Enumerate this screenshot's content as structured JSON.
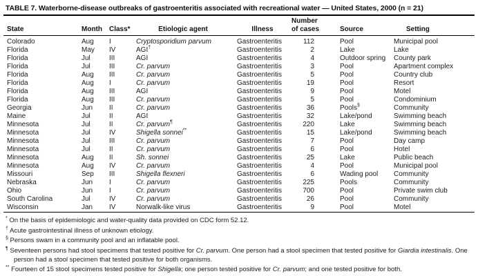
{
  "title": "TABLE 7. Waterborne-disease outbreaks of gastroenteritis associated with recreational water — United States, 2000 (n = 21)",
  "table": {
    "columns": {
      "state": "State",
      "month": "Month",
      "class": "Class*",
      "agent": "Etiologic agent",
      "illness": "Illness",
      "cases_line1": "Number",
      "cases_line2": "of cases",
      "source": "Source",
      "setting": "Setting"
    },
    "rows": [
      {
        "state": "Colorado",
        "month": "Aug",
        "class": "I",
        "agent": "Cryptosporidium parvum",
        "agent_italic": true,
        "agent_sup": "",
        "illness": "Gastroenteritis",
        "cases": "112",
        "source": "Pool",
        "source_sup": "",
        "setting": "Municipal pool"
      },
      {
        "state": "Florida",
        "month": "May",
        "class": "IV",
        "agent": "AGI",
        "agent_italic": false,
        "agent_sup": "†",
        "illness": "Gastroenteritis",
        "cases": "2",
        "source": "Lake",
        "source_sup": "",
        "setting": "Lake"
      },
      {
        "state": "Florida",
        "month": "Jul",
        "class": "III",
        "agent": "AGI",
        "agent_italic": false,
        "agent_sup": "",
        "illness": "Gastroenteritis",
        "cases": "4",
        "source": "Outdoor spring",
        "source_sup": "",
        "setting": "County park"
      },
      {
        "state": "Florida",
        "month": "Jul",
        "class": "III",
        "agent": "Cr. parvum",
        "agent_italic": true,
        "agent_sup": "",
        "illness": "Gastroenteritis",
        "cases": "3",
        "source": "Pool",
        "source_sup": "",
        "setting": "Apartment complex"
      },
      {
        "state": "Florida",
        "month": "Aug",
        "class": "III",
        "agent": "Cr. parvum",
        "agent_italic": true,
        "agent_sup": "",
        "illness": "Gastroenteritis",
        "cases": "5",
        "source": "Pool",
        "source_sup": "",
        "setting": "Country club"
      },
      {
        "state": "Florida",
        "month": "Aug",
        "class": "I",
        "agent": "Cr. parvum",
        "agent_italic": true,
        "agent_sup": "",
        "illness": "Gastroenteritis",
        "cases": "19",
        "source": "Pool",
        "source_sup": "",
        "setting": "Resort"
      },
      {
        "state": "Florida",
        "month": "Aug",
        "class": "III",
        "agent": "AGI",
        "agent_italic": false,
        "agent_sup": "",
        "illness": "Gastroenteritis",
        "cases": "9",
        "source": "Pool",
        "source_sup": "",
        "setting": "Motel"
      },
      {
        "state": "Florida",
        "month": "Aug",
        "class": "III",
        "agent": "Cr. parvum",
        "agent_italic": true,
        "agent_sup": "",
        "illness": "Gastroenteritis",
        "cases": "5",
        "source": "Pool",
        "source_sup": "",
        "setting": "Condominium"
      },
      {
        "state": "Georgia",
        "month": "Jun",
        "class": "II",
        "agent": "Cr. parvum",
        "agent_italic": true,
        "agent_sup": "",
        "illness": "Gastroenteritis",
        "cases": "36",
        "source": "Pools",
        "source_sup": "§",
        "setting": "Community"
      },
      {
        "state": "Maine",
        "month": "Jul",
        "class": "II",
        "agent": "AGI",
        "agent_italic": false,
        "agent_sup": "",
        "illness": "Gastroenteritis",
        "cases": "32",
        "source": "Lake/pond",
        "source_sup": "",
        "setting": "Swimming beach"
      },
      {
        "state": "Minnesota",
        "month": "Jul",
        "class": "II",
        "agent": "Cr. parvum",
        "agent_italic": true,
        "agent_sup": "¶",
        "illness": "Gastroenteritis",
        "cases": "220",
        "source": "Lake",
        "source_sup": "",
        "setting": "Swimming beach"
      },
      {
        "state": "Minnesota",
        "month": "Jul",
        "class": "IV",
        "agent": "Shigella sonnei",
        "agent_italic": true,
        "agent_sup": "**",
        "illness": "Gastroenteritis",
        "cases": "15",
        "source": "Lake/pond",
        "source_sup": "",
        "setting": "Swimming beach"
      },
      {
        "state": "Minnesota",
        "month": "Jul",
        "class": "III",
        "agent": "Cr. parvum",
        "agent_italic": true,
        "agent_sup": "",
        "illness": "Gastroenteritis",
        "cases": "7",
        "source": "Pool",
        "source_sup": "",
        "setting": "Day camp"
      },
      {
        "state": "Minnesota",
        "month": "Jul",
        "class": "II",
        "agent": "Cr. parvum",
        "agent_italic": true,
        "agent_sup": "",
        "illness": "Gastroenteritis",
        "cases": "6",
        "source": "Pool",
        "source_sup": "",
        "setting": "Hotel"
      },
      {
        "state": "Minnesota",
        "month": "Aug",
        "class": "II",
        "agent": "Sh. sonnei",
        "agent_italic": true,
        "agent_sup": "",
        "illness": "Gastroenteritis",
        "cases": "25",
        "source": "Lake",
        "source_sup": "",
        "setting": "Public beach"
      },
      {
        "state": "Minnesota",
        "month": "Aug",
        "class": "IV",
        "agent": "Cr. parvum",
        "agent_italic": true,
        "agent_sup": "",
        "illness": "Gastroenteritis",
        "cases": "4",
        "source": "Pool",
        "source_sup": "",
        "setting": "Municipal pool"
      },
      {
        "state": "Missouri",
        "month": "Sep",
        "class": "III",
        "agent": "Shigella flexneri",
        "agent_italic": true,
        "agent_sup": "",
        "illness": "Gastroenteritis",
        "cases": "6",
        "source": "Wading pool",
        "source_sup": "",
        "setting": "Community"
      },
      {
        "state": "Nebraska",
        "month": "Jun",
        "class": "I",
        "agent": "Cr. parvum",
        "agent_italic": true,
        "agent_sup": "",
        "illness": "Gastroenteritis",
        "cases": "225",
        "source": "Pools",
        "source_sup": "",
        "setting": "Community"
      },
      {
        "state": "Ohio",
        "month": "Jun",
        "class": "I",
        "agent": "Cr. parvum",
        "agent_italic": true,
        "agent_sup": "",
        "illness": "Gastroenteritis",
        "cases": "700",
        "source": "Pool",
        "source_sup": "",
        "setting": "Private swim club"
      },
      {
        "state": "South Carolina",
        "month": "Jul",
        "class": "IV",
        "agent": "Cr. parvum",
        "agent_italic": true,
        "agent_sup": "",
        "illness": "Gastroenteritis",
        "cases": "26",
        "source": "Pool",
        "source_sup": "",
        "setting": "Community"
      },
      {
        "state": "Wisconsin",
        "month": "Jan",
        "class": "IV",
        "agent": "Norwalk-like virus",
        "agent_italic": false,
        "agent_sup": "",
        "illness": "Gastroenteritis",
        "cases": "9",
        "source": "Pool",
        "source_sup": "",
        "setting": "Motel"
      }
    ]
  },
  "footnotes": [
    {
      "symbol": "*",
      "segments": [
        {
          "text": "On the basis of epidemiologic and water-quality data provided on CDC form 52.12.",
          "italic": false
        }
      ]
    },
    {
      "symbol": "†",
      "segments": [
        {
          "text": "Acute gastrointestinal illness of unknown etiology.",
          "italic": false
        }
      ]
    },
    {
      "symbol": "§",
      "segments": [
        {
          "text": "Persons swam in a community pool and an inflatable pool.",
          "italic": false
        }
      ]
    },
    {
      "symbol": "¶",
      "segments": [
        {
          "text": "Seventeen persons had stool specimens that tested positive for ",
          "italic": false
        },
        {
          "text": "Cr. parvum",
          "italic": true
        },
        {
          "text": ". One person had a stool specimen that tested positive for ",
          "italic": false
        },
        {
          "text": "Giardia intestinalis",
          "italic": true
        },
        {
          "text": ". One person had a stool specimen that tested positive for both organisms.",
          "italic": false
        }
      ]
    },
    {
      "symbol": "**",
      "segments": [
        {
          "text": "Fourteen of 15 stool specimens tested positive for ",
          "italic": false
        },
        {
          "text": "Shigella",
          "italic": true
        },
        {
          "text": "; one person tested positive for ",
          "italic": false
        },
        {
          "text": "Cr. parvum",
          "italic": true
        },
        {
          "text": "; and one tested positive for both.",
          "italic": false
        }
      ]
    }
  ]
}
